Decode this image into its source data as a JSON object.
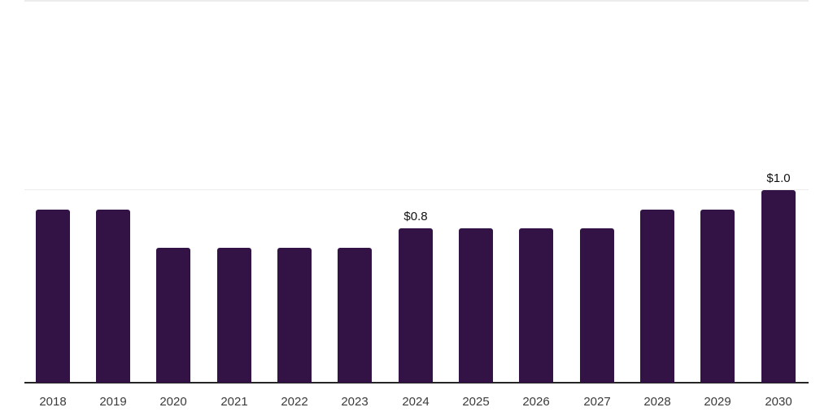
{
  "chart_data": {
    "type": "bar",
    "title": "",
    "xlabel": "",
    "ylabel": "",
    "categories": [
      "2018",
      "2019",
      "2020",
      "2021",
      "2022",
      "2023",
      "2024",
      "2025",
      "2026",
      "2027",
      "2028",
      "2029",
      "2030"
    ],
    "values": [
      0.9,
      0.9,
      0.7,
      0.7,
      0.7,
      0.7,
      0.8,
      0.8,
      0.8,
      0.8,
      0.9,
      0.9,
      1.0
    ],
    "data_labels": {
      "2024": "$0.8",
      "2030": "$1.0"
    },
    "ylim": [
      0,
      2.0
    ],
    "gridlines_y": [
      1.0,
      2.0
    ],
    "grid": "horizontal",
    "legend": "none",
    "bar_color": "#331245",
    "axis_color": "#262626",
    "gridline_color": "#ececec",
    "tick_label_color": "#3b3b3b",
    "value_label_color": "#111111"
  }
}
